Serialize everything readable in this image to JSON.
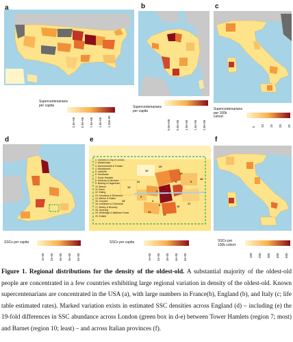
{
  "panels": {
    "a": {
      "label": "a",
      "legend_title": "Supercentenarians\nper capita",
      "ticks": [
        "2.5e-06",
        "5.0e-06",
        "7.5e-06",
        "1.0e-05",
        "1.25e-05"
      ]
    },
    "b": {
      "label": "b",
      "legend_title": "Supercentenarians\nper capita",
      "ticks": [
        "0.0e+00",
        "5.0e-06",
        "1.0e-05",
        "1.5e-05",
        "2.0e-05"
      ]
    },
    "c": {
      "label": "c",
      "legend_title": "Supercentenarians\nper 100k\ncohort",
      "ticks": [
        "5",
        "10",
        "15",
        "20",
        "25"
      ]
    },
    "d": {
      "label": "d",
      "legend_title": "SSCs per capita",
      "ticks": [
        "1e-05",
        "2e-05",
        "3e-05",
        "4e-05",
        "5e-05"
      ]
    },
    "e": {
      "label": "e",
      "legend_title": "SSCs per capita",
      "ticks": [
        "1e-05",
        "2e-05",
        "3e-05",
        "4e-05",
        "5e-05"
      ],
      "boroughs": [
        "1. Camden & City of London",
        "2. Westminster",
        "3. Hammersmith & Fulham",
        "4. Wandsworth",
        "5. Lambeth",
        "6. Southwark",
        "7. Tower Hamlets",
        "8. Hackney & Newham",
        "9. Barking & Dagenham",
        "10. Barnet",
        "11. Brent",
        "12. Ealing",
        "13. Hounslow & Richmond",
        "14. Merton & Sutton",
        "15. Croydon",
        "16. Lewisham & Greenwich",
        "17. Bexley & Bromley",
        "18. Havering",
        "19. Redbridge & Waltham Forest",
        "20. Enfield"
      ],
      "numbers": [
        "1",
        "2",
        "3",
        "4",
        "5",
        "6",
        "7",
        "8",
        "9",
        "10",
        "11",
        "12",
        "13",
        "14",
        "15",
        "16",
        "17",
        "18",
        "19",
        "20"
      ]
    },
    "f": {
      "label": "f",
      "legend_title": "SSCs per\n100k cohort",
      "ticks": [
        "100",
        "200",
        "300",
        "400",
        "500"
      ]
    }
  },
  "caption": {
    "bold": "Figure 1. Regional distributions for the density of the oldest-old.",
    "text": " A substantial majority of the oldest-old people are concentrated in a few countries exhibiting large regional variation in density of the oldest-old. Known supercentenarians are concentrated in the USA (a), with large numbers in France(b), England (b), and Italy (c; life table estimated rates). Marked variation exists in estimated SSC densities across England (d) – including (e) the 19-fold differences in SSC abundance across London (green box in d-e) between Tower Hamlets (region 7; most) and Barnet (region 10; least) – and across Italian provinces (f)."
  },
  "colors": {
    "sea": "#a6d3e6",
    "land_gray": "#888888",
    "light": "#fff4c2",
    "mid": "#f9b04a",
    "dark": "#8b0d1a"
  }
}
